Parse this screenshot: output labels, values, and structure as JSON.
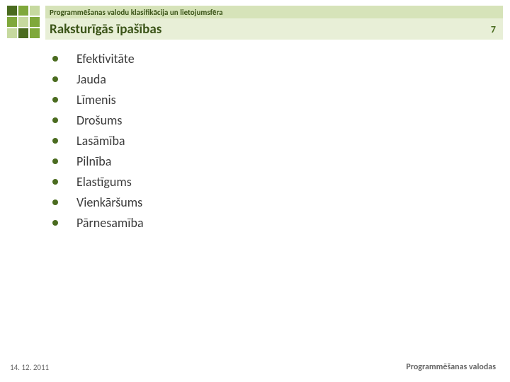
{
  "colors": {
    "dark_green": "#4a6b1f",
    "mid_green": "#7fa83b",
    "light_green": "#c6d99f",
    "header_topic_bg": "#d6e3b9",
    "header_title_bg": "#e8efd7",
    "title_text": "#3a5317",
    "pagenum_text": "#4a6b1f",
    "bullet_color": "#4a6b1f",
    "body_text": "#3b3b3b",
    "footer_text": "#666666"
  },
  "logo_cells": [
    "dark_green",
    "mid_green",
    "light_green",
    "mid_green",
    "light_green",
    "mid_green",
    "light_green",
    "dark_green",
    "mid_green"
  ],
  "header": {
    "topic": "Programmēšanas valodu klasifikācija un lietojumsfēra",
    "title": "Raksturīgās īpašības",
    "page_number": "7"
  },
  "bullets": [
    "Efektivitāte",
    "Jauda",
    "Līmenis",
    "Drošums",
    "Lasāmība",
    "Pilnība",
    "Elastīgums",
    "Vienkāršums",
    "Pārnesamība"
  ],
  "footer": {
    "date": "14. 12. 2011",
    "course": "Programmēšanas valodas"
  }
}
